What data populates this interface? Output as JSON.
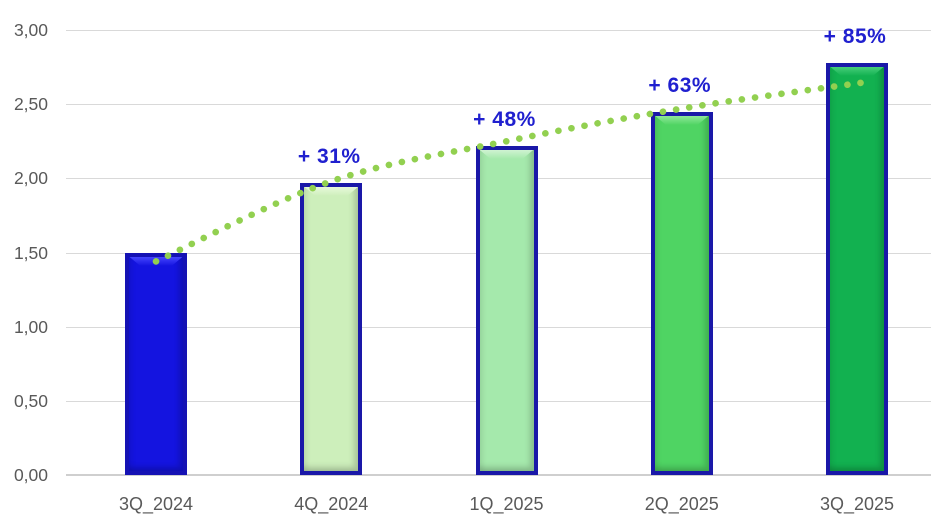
{
  "chart_data": {
    "type": "bar",
    "title": "",
    "xlabel": "",
    "ylabel": "",
    "categories": [
      "3Q_2024",
      "4Q_2024",
      "1Q_2025",
      "2Q_2025",
      "3Q_2025"
    ],
    "values": [
      1.5,
      1.97,
      2.22,
      2.45,
      2.78
    ],
    "bar_labels": [
      "",
      "+ 31%",
      "+ 48%",
      "+ 63%",
      "+ 85%"
    ],
    "y_ticks": [
      "3,00",
      "2,50",
      "2,00",
      "1,50",
      "1,00",
      "0,50",
      "0,00"
    ],
    "ylim": [
      0,
      3.0
    ],
    "y_step": 0.5,
    "grid": true,
    "legend": "none",
    "decimal_style": "comma",
    "bar_colors": [
      {
        "fill": "#1414e0",
        "light": "#4848ff",
        "border": "#1512b4"
      },
      {
        "fill": "#cdefbb",
        "light": "#e9f9dc",
        "border": "#1a18a8"
      },
      {
        "fill": "#a5e9ac",
        "light": "#d2f4d4",
        "border": "#1a18a8"
      },
      {
        "fill": "#4fd463",
        "light": "#92e89c",
        "border": "#1a18a8"
      },
      {
        "fill": "#12b150",
        "light": "#49cf7c",
        "border": "#1a18a8"
      }
    ],
    "pct_label_color": "#2020cf",
    "axis_text_color": "#595959",
    "grid_color": "#d9d9d9",
    "trendline": {
      "type": "smooth-dotted",
      "color": "#92d050",
      "x": [
        0,
        1,
        2,
        3,
        4.06
      ],
      "values": [
        1.44,
        1.98,
        2.25,
        2.47,
        2.65
      ]
    }
  }
}
